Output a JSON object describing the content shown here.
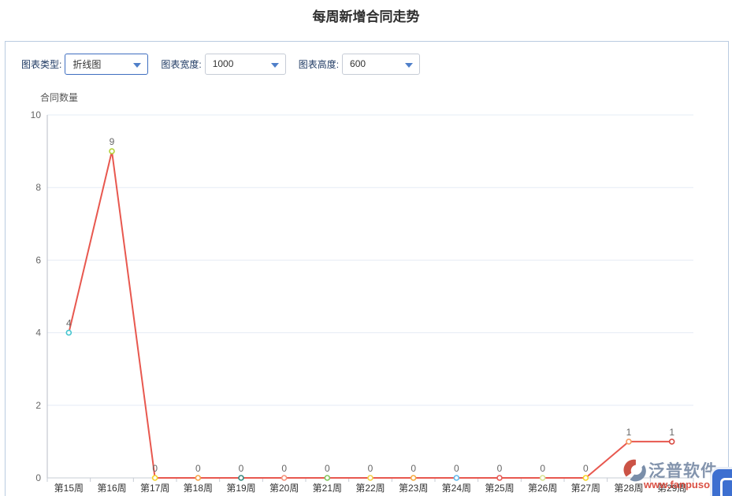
{
  "page": {
    "title": "每周新增合同走势"
  },
  "toolbar": {
    "chart_type_label": "图表类型:",
    "chart_type_value": "折线图",
    "chart_width_label": "图表宽度:",
    "chart_width_value": "1000",
    "chart_height_label": "图表高度:",
    "chart_height_value": "600",
    "dropdown_icon": "chevron-down"
  },
  "chart_data": {
    "type": "line",
    "title": "每周新增合同走势",
    "ylabel": "合同数量",
    "xlabel": "",
    "categories": [
      "第15周",
      "第16周",
      "第17周",
      "第18周",
      "第19周",
      "第20周",
      "第21周",
      "第22周",
      "第23周",
      "第24周",
      "第25周",
      "第26周",
      "第27周",
      "第28周",
      "第29周"
    ],
    "values": [
      4,
      9,
      0,
      0,
      0,
      0,
      0,
      0,
      0,
      0,
      0,
      0,
      0,
      1,
      1
    ],
    "ylim": [
      0,
      10
    ],
    "yticks": [
      0,
      2,
      4,
      6,
      8,
      10
    ],
    "grid": true,
    "legend_position": "none",
    "line_color": "#e8584f",
    "grid_color": "#e6ecf5",
    "axis_color": "#c7ccd4",
    "tick_label_color": "#666666",
    "category_label_color": "#333333",
    "value_label_color": "#666666",
    "point_colors": [
      "#45c5cf",
      "#b3d23c",
      "#f5d428",
      "#f5a44a",
      "#37897f",
      "#f5927a",
      "#84c55e",
      "#f0d04a",
      "#f5ab42",
      "#62b9ec",
      "#e45a55",
      "#d8e394",
      "#f7d723",
      "#f59a60",
      "#d84a42"
    ]
  },
  "watermark": {
    "brand": "泛普软件",
    "url": "www.fanpusoft.com",
    "logo_icon": "fanpu-swoosh"
  },
  "floating_widget": {
    "icon": "chat-phone"
  }
}
